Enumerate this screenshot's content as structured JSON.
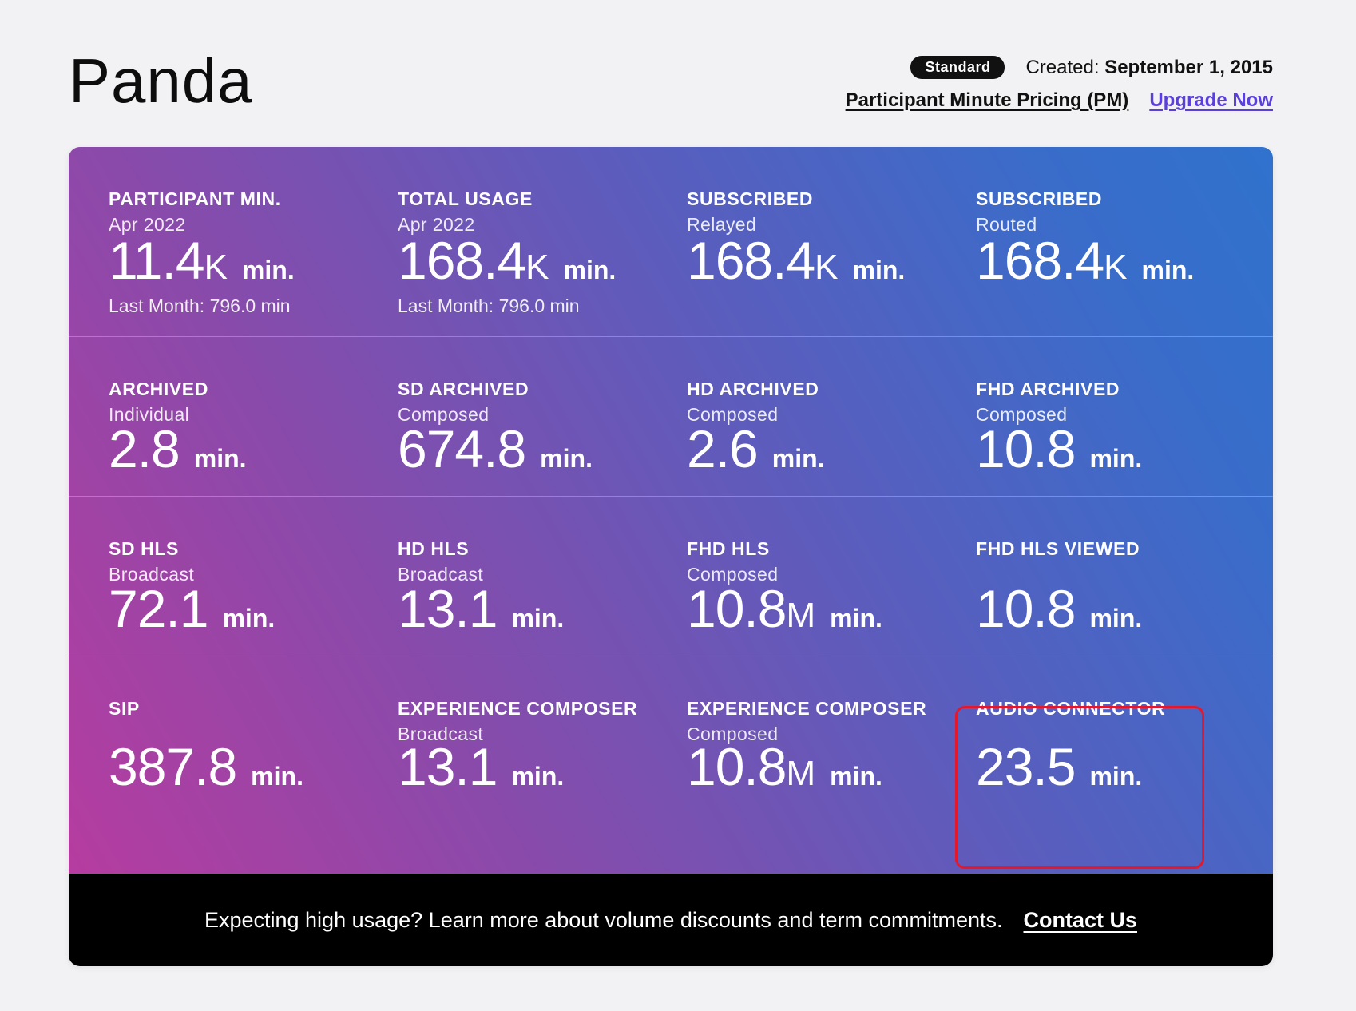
{
  "header": {
    "title": "Panda",
    "badge": "Standard",
    "created_label": "Created:",
    "created_date": "September 1, 2015",
    "pricing_label": "Participant Minute Pricing (PM)",
    "upgrade_label": "Upgrade Now"
  },
  "metrics": [
    {
      "label": "PARTICIPANT MIN.",
      "sub": "Apr 2022",
      "num": "11.4",
      "suffix": "K",
      "unit": "min.",
      "last_month": "Last Month: 796.0 min"
    },
    {
      "label": "TOTAL USAGE",
      "sub": "Apr 2022",
      "num": "168.4",
      "suffix": "K",
      "unit": "min.",
      "last_month": "Last Month: 796.0 min"
    },
    {
      "label": "SUBSCRIBED",
      "sub": "Relayed",
      "num": "168.4",
      "suffix": "K",
      "unit": "min.",
      "last_month": ""
    },
    {
      "label": "SUBSCRIBED",
      "sub": "Routed",
      "num": "168.4",
      "suffix": "K",
      "unit": "min.",
      "last_month": ""
    },
    {
      "label": "ARCHIVED",
      "sub": "Individual",
      "num": "2.8",
      "suffix": "",
      "unit": "min.",
      "last_month": ""
    },
    {
      "label": "SD ARCHIVED",
      "sub": "Composed",
      "num": "674.8",
      "suffix": "",
      "unit": "min.",
      "last_month": ""
    },
    {
      "label": "HD ARCHIVED",
      "sub": "Composed",
      "num": "2.6",
      "suffix": "",
      "unit": "min.",
      "last_month": ""
    },
    {
      "label": "FHD ARCHIVED",
      "sub": "Composed",
      "num": "10.8",
      "suffix": "",
      "unit": "min.",
      "last_month": ""
    },
    {
      "label": "SD HLS",
      "sub": "Broadcast",
      "num": "72.1",
      "suffix": "",
      "unit": "min.",
      "last_month": ""
    },
    {
      "label": "HD HLS",
      "sub": "Broadcast",
      "num": "13.1",
      "suffix": "",
      "unit": "min.",
      "last_month": ""
    },
    {
      "label": "FHD HLS",
      "sub": "Composed",
      "num": "10.8",
      "suffix": "M",
      "unit": "min.",
      "last_month": ""
    },
    {
      "label": "FHD HLS VIEWED",
      "sub": "",
      "num": "10.8",
      "suffix": "",
      "unit": "min.",
      "last_month": ""
    },
    {
      "label": "SIP",
      "sub": "",
      "num": "387.8",
      "suffix": "",
      "unit": "min.",
      "last_month": ""
    },
    {
      "label": "EXPERIENCE COMPOSER",
      "sub": "Broadcast",
      "num": "13.1",
      "suffix": "",
      "unit": "min.",
      "last_month": ""
    },
    {
      "label": "EXPERIENCE COMPOSER",
      "sub": "Composed",
      "num": "10.8",
      "suffix": "M",
      "unit": "min.",
      "last_month": ""
    },
    {
      "label": "AUDIO CONNECTOR",
      "sub": "",
      "num": "23.5",
      "suffix": "",
      "unit": "min.",
      "last_month": ""
    }
  ],
  "footer": {
    "message": "Expecting high usage? Learn more about volume discounts and term commitments.",
    "cta": "Contact Us"
  },
  "colors": {
    "gradient_start": "#b63ca0",
    "gradient_end": "#2f72cd",
    "highlight": "#e3182d",
    "upgrade_link": "#5b3fd9"
  }
}
